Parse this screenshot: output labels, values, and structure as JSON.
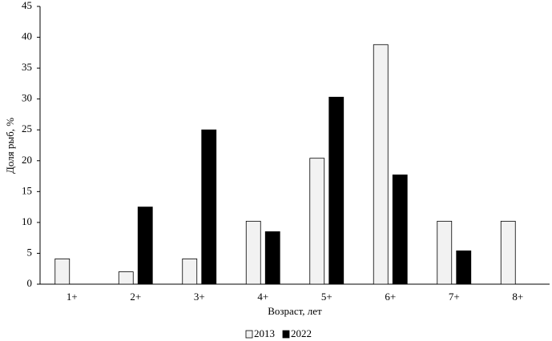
{
  "chart_data": {
    "type": "bar",
    "x_label": "Возраст, лет",
    "y_label": "Доля рыб, %",
    "categories": [
      "1+",
      "2+",
      "3+",
      "4+",
      "5+",
      "6+",
      "7+",
      "8+"
    ],
    "series": [
      {
        "name": "2013",
        "color": "#f2f2f2",
        "values": [
          4.1,
          2.0,
          4.1,
          10.2,
          20.4,
          38.8,
          10.2,
          10.2
        ]
      },
      {
        "name": "2022",
        "color": "#000000",
        "values": [
          null,
          12.5,
          25.0,
          8.5,
          30.3,
          17.7,
          5.4,
          null
        ]
      }
    ],
    "ylim": [
      0,
      45
    ],
    "yticks": [
      0,
      5,
      10,
      15,
      20,
      25,
      30,
      35,
      40,
      45
    ],
    "grid": false,
    "legend": "bottom"
  }
}
